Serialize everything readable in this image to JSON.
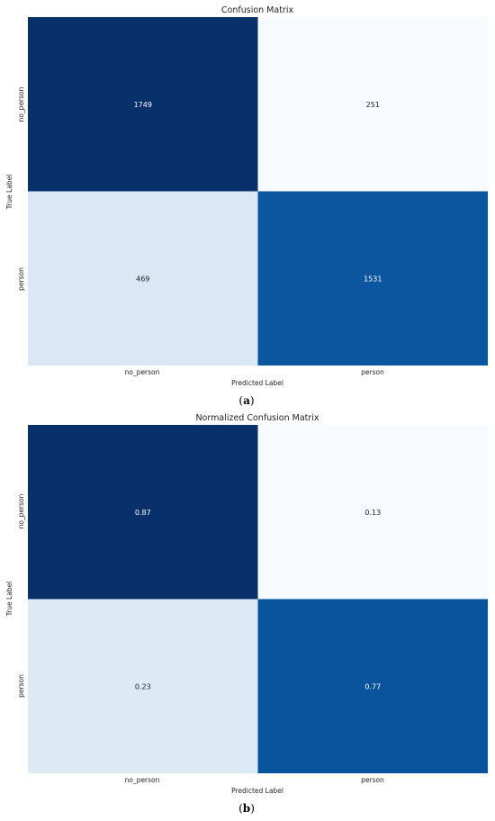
{
  "chart_data": [
    {
      "type": "heatmap",
      "title": "Confusion Matrix",
      "xlabel": "Predicted Label",
      "ylabel": "True Label",
      "x_categories": [
        "no_person",
        "person"
      ],
      "y_categories": [
        "no_person",
        "person"
      ],
      "values": [
        [
          1749,
          251
        ],
        [
          469,
          1531
        ]
      ],
      "colormap": "Blues",
      "caption_letter": "a"
    },
    {
      "type": "heatmap",
      "title": "Normalized Confusion Matrix",
      "xlabel": "Predicted Label",
      "ylabel": "True Label",
      "x_categories": [
        "no_person",
        "person"
      ],
      "y_categories": [
        "no_person",
        "person"
      ],
      "values": [
        [
          0.87,
          0.13
        ],
        [
          0.23,
          0.77
        ]
      ],
      "colormap": "Blues",
      "caption_letter": "b"
    }
  ],
  "colors": {
    "c_dark": "#08306b",
    "c_mid": "#0453a4",
    "c_light": "#d6e6f4",
    "c_pale": "#f5f9fe"
  }
}
